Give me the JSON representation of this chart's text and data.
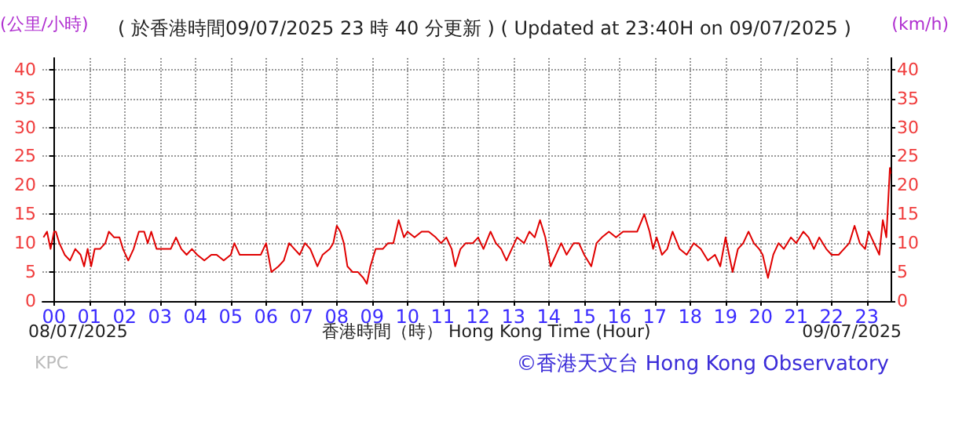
{
  "chart_data": {
    "type": "line",
    "title": "( 於香港時間09/07/2025 23 時 40 分更新 ) ( Updated at 23:40H on 09/07/2025 )",
    "xlabel": "香港時間（時） Hong Kong Time (Hour)",
    "ylabel": "(公里/小時)",
    "y2label": "(km/h)",
    "annotations": [
      "08/07/2025",
      "09/07/2025",
      "KPC",
      "©香港天文台 Hong Kong Observatory"
    ],
    "series": [
      {
        "color": "#e00000",
        "x": [
          -0.3,
          -0.2,
          -0.1,
          0,
          0.05,
          0.15,
          0.3,
          0.45,
          0.6,
          0.75,
          0.85,
          0.95,
          1.05,
          1.15,
          1.3,
          1.45,
          1.55,
          1.7,
          1.85,
          1.95,
          2.1,
          2.25,
          2.4,
          2.55,
          2.65,
          2.75,
          2.9,
          3.1,
          3.3,
          3.45,
          3.6,
          3.75,
          3.9,
          4.05,
          4.25,
          4.45,
          4.6,
          4.8,
          5.0,
          5.1,
          5.25,
          5.45,
          5.65,
          5.85,
          6.0,
          6.15,
          6.35,
          6.5,
          6.65,
          6.8,
          6.95,
          7.1,
          7.25,
          7.45,
          7.6,
          7.8,
          7.9,
          8.0,
          8.1,
          8.2,
          8.3,
          8.45,
          8.6,
          8.75,
          8.85,
          8.95,
          9.1,
          9.3,
          9.45,
          9.6,
          9.75,
          9.9,
          10.0,
          10.2,
          10.4,
          10.6,
          10.8,
          10.95,
          11.1,
          11.25,
          11.35,
          11.5,
          11.65,
          11.85,
          12.0,
          12.15,
          12.35,
          12.5,
          12.65,
          12.8,
          12.95,
          13.1,
          13.3,
          13.45,
          13.6,
          13.75,
          13.9,
          14.05,
          14.2,
          14.35,
          14.5,
          14.7,
          14.85,
          15.0,
          15.2,
          15.35,
          15.5,
          15.7,
          15.9,
          16.1,
          16.3,
          16.5,
          16.7,
          16.85,
          16.95,
          17.05,
          17.2,
          17.35,
          17.5,
          17.7,
          17.9,
          18.1,
          18.3,
          18.5,
          18.7,
          18.85,
          19.0,
          19.1,
          19.2,
          19.35,
          19.5,
          19.65,
          19.8,
          19.95,
          20.05,
          20.2,
          20.35,
          20.5,
          20.65,
          20.85,
          21.0,
          21.2,
          21.35,
          21.5,
          21.65,
          21.85,
          22.0,
          22.2,
          22.35,
          22.5,
          22.65,
          22.8,
          22.95,
          23.05,
          23.2,
          23.35,
          23.45,
          23.55,
          23.6,
          23.65,
          23.67
        ],
        "values": [
          11,
          12,
          9,
          12,
          12,
          10,
          8,
          7,
          9,
          8,
          6,
          9,
          6,
          9,
          9,
          10,
          12,
          11,
          11,
          9,
          7,
          9,
          12,
          12,
          10,
          12,
          9,
          9,
          9,
          11,
          9,
          8,
          9,
          8,
          7,
          8,
          8,
          7,
          8,
          10,
          8,
          8,
          8,
          8,
          10,
          5,
          6,
          7,
          10,
          9,
          8,
          10,
          9,
          6,
          8,
          9,
          10,
          13,
          12,
          10,
          6,
          5,
          5,
          4,
          3,
          6,
          9,
          9,
          10,
          10,
          14,
          11,
          12,
          11,
          12,
          12,
          11,
          10,
          11,
          9,
          6,
          9,
          10,
          10,
          11,
          9,
          12,
          10,
          9,
          7,
          9,
          11,
          10,
          12,
          11,
          14,
          11,
          6,
          8,
          10,
          8,
          10,
          10,
          8,
          6,
          10,
          11,
          12,
          11,
          12,
          12,
          12,
          15,
          12,
          9,
          11,
          8,
          9,
          12,
          9,
          8,
          10,
          9,
          7,
          8,
          6,
          11,
          8,
          5,
          9,
          10,
          12,
          10,
          9,
          8,
          4,
          8,
          10,
          9,
          11,
          10,
          12,
          11,
          9,
          11,
          9,
          8,
          8,
          9,
          10,
          13,
          10,
          9,
          12,
          10,
          8,
          14,
          11,
          17,
          23,
          22
        ]
      }
    ],
    "xlim": [
      -0.33,
      23.67
    ],
    "xticks": [
      {
        "value": 0,
        "label": "00"
      },
      {
        "value": 1,
        "label": "01"
      },
      {
        "value": 2,
        "label": "02"
      },
      {
        "value": 3,
        "label": "03"
      },
      {
        "value": 4,
        "label": "04"
      },
      {
        "value": 5,
        "label": "05"
      },
      {
        "value": 6,
        "label": "06"
      },
      {
        "value": 7,
        "label": "07"
      },
      {
        "value": 8,
        "label": "08"
      },
      {
        "value": 9,
        "label": "09"
      },
      10,
      11,
      12,
      13,
      14,
      15,
      16,
      17,
      18,
      19,
      20,
      21,
      22,
      23
    ],
    "ylim": [
      0,
      42
    ],
    "yticks": [
      0,
      5,
      10,
      15,
      20,
      25,
      30,
      35,
      40
    ],
    "y2lim": [
      0,
      42
    ],
    "y2ticks": [
      0,
      5,
      10,
      15,
      20,
      25,
      30,
      35,
      40
    ],
    "grid": true,
    "marker": "none",
    "line_style": "solid"
  }
}
